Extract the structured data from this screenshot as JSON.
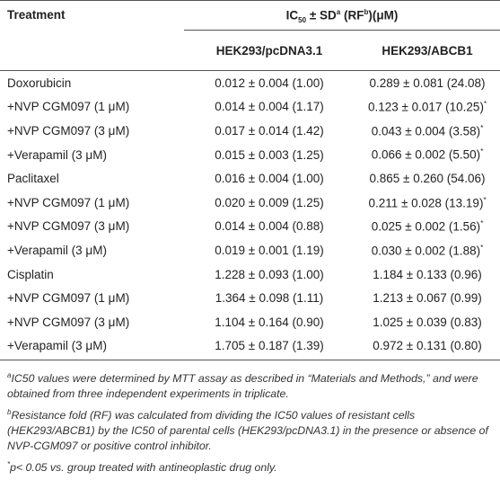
{
  "table": {
    "header": {
      "treatment": "Treatment",
      "group": {
        "ic": "IC",
        "sub": "50",
        "sd": " ± SD",
        "sup_a": "a",
        "rf": " (RF",
        "sup_b": "b",
        "unit": ")(μM)"
      },
      "columns": [
        "HEK293/pcDNA3.1",
        "HEK293/ABCB1"
      ]
    },
    "rows": [
      {
        "treatment": "Doxorubicin",
        "pcdna": "0.012 ± 0.004 (1.00)",
        "abcb1": "0.289 ± 0.081 (24.08)"
      },
      {
        "treatment": "+NVP CGM097 (1 μM)",
        "pcdna": "0.014 ± 0.004 (1.17)",
        "abcb1": "0.123 ± 0.017 (10.25)",
        "sig": "*"
      },
      {
        "treatment": "+NVP CGM097 (3 μM)",
        "pcdna": "0.017 ± 0.014 (1.42)",
        "abcb1": "0.043 ± 0.004 (3.58)",
        "sig": "*"
      },
      {
        "treatment": "+Verapamil (3 μM)",
        "pcdna": "0.015 ± 0.003 (1.25)",
        "abcb1": "0.066 ± 0.002 (5.50)",
        "sig": "*"
      },
      {
        "treatment": "Paclitaxel",
        "pcdna": "0.016 ± 0.004 (1.00)",
        "abcb1": "0.865 ± 0.260 (54.06)"
      },
      {
        "treatment": "+NVP CGM097 (1 μM)",
        "pcdna": "0.020 ± 0.009 (1.25)",
        "abcb1": "0.211 ± 0.028 (13.19)",
        "sig": "*"
      },
      {
        "treatment": "+NVP CGM097 (3 μM)",
        "pcdna": "0.014 ± 0.004 (0.88)",
        "abcb1": "0.025 ± 0.002 (1.56)",
        "sig": "*"
      },
      {
        "treatment": "+Verapamil (3 μM)",
        "pcdna": "0.019 ± 0.001 (1.19)",
        "abcb1": "0.030 ± 0.002 (1.88)",
        "sig": "*"
      },
      {
        "treatment": "Cisplatin",
        "pcdna": "1.228 ± 0.093 (1.00)",
        "abcb1": "1.184 ± 0.133 (0.96)"
      },
      {
        "treatment": "+NVP CGM097 (1 μM)",
        "pcdna": "1.364 ± 0.098 (1.11)",
        "abcb1": "1.213 ± 0.067 (0.99)"
      },
      {
        "treatment": "+NVP CGM097 (3 μM)",
        "pcdna": "1.104 ± 0.164 (0.90)",
        "abcb1": "1.025 ± 0.039 (0.83)"
      },
      {
        "treatment": "+Verapamil (3 μM)",
        "pcdna": "1.705 ± 0.187 (1.39)",
        "abcb1": "0.972 ± 0.131 (0.80)"
      }
    ],
    "footnotes": [
      {
        "mark": "a",
        "text": "IC50 values were determined by MTT assay as described in “Materials and Methods,” and were obtained from three independent experiments in triplicate."
      },
      {
        "mark": "b",
        "text": "Resistance fold (RF) was calculated from dividing the IC50 values of resistant cells (HEK293/ABCB1) by the IC50 of parental cells (HEK293/pcDNA3.1) in the presence or absence of NVP-CGM097 or positive control inhibitor."
      },
      {
        "mark": "*",
        "text": "p< 0.05 vs. group treated with antineoplastic drug only."
      }
    ]
  }
}
